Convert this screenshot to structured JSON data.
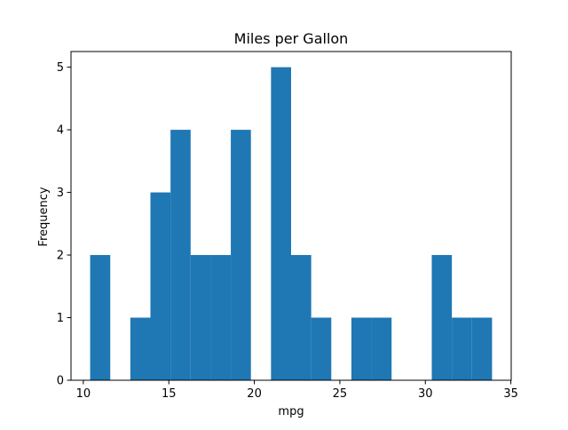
{
  "chart_data": {
    "type": "bar",
    "title": "Miles per Gallon",
    "xlabel": "mpg",
    "ylabel": "Frequency",
    "xlim": [
      9.28,
      35.02
    ],
    "ylim": [
      0,
      5.25
    ],
    "xticks": [
      10,
      15,
      20,
      25,
      30,
      35
    ],
    "yticks": [
      0,
      1,
      2,
      3,
      4,
      5
    ],
    "bin_edges": [
      10.4,
      11.575,
      12.75,
      13.925,
      15.1,
      16.275,
      17.45,
      18.625,
      19.8,
      20.975,
      22.15,
      23.325,
      24.5,
      25.675,
      26.85,
      28.025,
      29.2,
      30.375,
      31.55,
      32.725,
      33.9
    ],
    "values": [
      2,
      0,
      1,
      3,
      4,
      2,
      2,
      4,
      0,
      5,
      2,
      1,
      0,
      1,
      1,
      0,
      0,
      2,
      1,
      1
    ],
    "grid": false,
    "legend": "none",
    "bar_color": "#1f77b4"
  }
}
